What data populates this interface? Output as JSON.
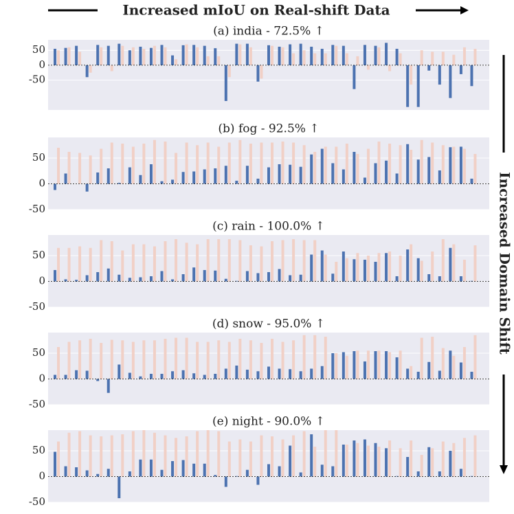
{
  "header": {
    "title": "Increased mIoU on Real-shift Data",
    "side_label": "Increased Domain Shift"
  },
  "chart_data": [
    {
      "type": "bar",
      "title": "(a) india - 72.5% ↑",
      "ylim": [
        -150,
        85
      ],
      "yticks": [
        -50,
        0,
        50
      ],
      "grid": true,
      "categories": [
        null,
        null,
        null,
        null,
        null,
        null,
        null,
        null,
        null,
        null,
        null,
        null,
        null,
        null,
        null,
        null,
        null,
        null,
        null,
        null,
        null,
        null,
        null,
        null,
        null,
        null,
        null,
        null,
        null,
        null,
        null,
        null,
        null,
        null,
        null,
        null,
        null,
        null,
        null,
        null
      ],
      "series": [
        {
          "color": "#4c72b0",
          "values": [
            55,
            58,
            65,
            -40,
            68,
            65,
            72,
            50,
            62,
            58,
            68,
            33,
            67,
            68,
            65,
            57,
            -120,
            72,
            72,
            -55,
            67,
            62,
            70,
            72,
            62,
            55,
            68,
            65,
            -80,
            68,
            65,
            75,
            55,
            -140,
            -140,
            -18,
            -65,
            -110,
            -30,
            -70
          ]
        },
        {
          "color": "#f1d0c6",
          "values": [
            50,
            60,
            45,
            -25,
            60,
            -20,
            65,
            60,
            55,
            65,
            60,
            20,
            70,
            60,
            30,
            30,
            -40,
            70,
            60,
            -45,
            65,
            60,
            40,
            50,
            40,
            40,
            65,
            40,
            30,
            -15,
            60,
            -20,
            40,
            -65,
            50,
            45,
            45,
            35,
            60,
            55
          ]
        }
      ]
    },
    {
      "type": "bar",
      "title": "(b) fog - 92.5% ↑",
      "ylim": [
        -50,
        90
      ],
      "yticks": [
        -50,
        0,
        50
      ],
      "grid": true,
      "categories": [
        null,
        null,
        null,
        null,
        null,
        null,
        null,
        null,
        null,
        null,
        null,
        null,
        null,
        null,
        null,
        null,
        null,
        null,
        null,
        null,
        null,
        null,
        null,
        null,
        null,
        null,
        null,
        null,
        null,
        null,
        null,
        null,
        null,
        null,
        null,
        null,
        null,
        null,
        null,
        null
      ],
      "series": [
        {
          "color": "#4c72b0",
          "values": [
            -12,
            20,
            0,
            -15,
            22,
            30,
            2,
            32,
            17,
            38,
            5,
            8,
            23,
            24,
            28,
            30,
            35,
            6,
            35,
            10,
            32,
            38,
            37,
            33,
            57,
            68,
            40,
            28,
            62,
            12,
            40,
            45,
            20,
            77,
            47,
            52,
            26,
            71,
            72,
            10
          ]
        },
        {
          "color": "#f1d0c6",
          "values": [
            70,
            62,
            60,
            55,
            68,
            80,
            78,
            72,
            78,
            85,
            82,
            60,
            80,
            75,
            80,
            72,
            80,
            85,
            78,
            80,
            80,
            82,
            80,
            75,
            62,
            72,
            72,
            78,
            58,
            68,
            82,
            78,
            75,
            66,
            85,
            80,
            75,
            72,
            68,
            58
          ]
        }
      ]
    },
    {
      "type": "bar",
      "title": "(c) rain - 100.0% ↑",
      "ylim": [
        -50,
        90
      ],
      "yticks": [
        -50,
        0,
        50
      ],
      "grid": true,
      "categories": [
        null,
        null,
        null,
        null,
        null,
        null,
        null,
        null,
        null,
        null,
        null,
        null,
        null,
        null,
        null,
        null,
        null,
        null,
        null,
        null,
        null,
        null,
        null,
        null,
        null,
        null,
        null,
        null,
        null,
        null,
        null,
        null,
        null,
        null,
        null,
        null,
        null,
        null,
        null,
        null
      ],
      "series": [
        {
          "color": "#4c72b0",
          "values": [
            22,
            4,
            3,
            12,
            18,
            25,
            13,
            7,
            8,
            10,
            20,
            4,
            14,
            27,
            22,
            21,
            5,
            1,
            20,
            16,
            18,
            24,
            12,
            13,
            52,
            60,
            15,
            58,
            43,
            42,
            38,
            55,
            10,
            62,
            45,
            14,
            10,
            65,
            10,
            1
          ]
        },
        {
          "color": "#f1d0c6",
          "values": [
            65,
            65,
            68,
            65,
            80,
            78,
            60,
            72,
            72,
            68,
            78,
            82,
            75,
            72,
            82,
            82,
            82,
            80,
            70,
            68,
            78,
            80,
            82,
            80,
            80,
            52,
            38,
            45,
            55,
            50,
            55,
            58,
            50,
            72,
            40,
            58,
            82,
            72,
            42,
            70
          ]
        }
      ]
    },
    {
      "type": "bar",
      "title": "(d) snow - 95.0% ↑",
      "ylim": [
        -50,
        90
      ],
      "yticks": [
        -50,
        0,
        50
      ],
      "grid": true,
      "categories": [
        null,
        null,
        null,
        null,
        null,
        null,
        null,
        null,
        null,
        null,
        null,
        null,
        null,
        null,
        null,
        null,
        null,
        null,
        null,
        null,
        null,
        null,
        null,
        null,
        null,
        null,
        null,
        null,
        null,
        null,
        null,
        null,
        null,
        null,
        null,
        null,
        null,
        null,
        null,
        null
      ],
      "series": [
        {
          "color": "#4c72b0",
          "values": [
            8,
            8,
            17,
            16,
            -4,
            -27,
            28,
            12,
            5,
            10,
            10,
            15,
            17,
            11,
            8,
            10,
            20,
            26,
            18,
            15,
            24,
            20,
            19,
            15,
            20,
            25,
            50,
            52,
            54,
            34,
            54,
            54,
            42,
            20,
            14,
            33,
            16,
            55,
            32,
            14
          ]
        },
        {
          "color": "#f1d0c6",
          "values": [
            62,
            72,
            75,
            78,
            70,
            76,
            75,
            72,
            75,
            75,
            78,
            80,
            80,
            72,
            72,
            75,
            72,
            78,
            75,
            70,
            78,
            72,
            75,
            85,
            85,
            82,
            50,
            45,
            55,
            55,
            55,
            52,
            55,
            25,
            80,
            82,
            60,
            45,
            62,
            85
          ]
        }
      ]
    },
    {
      "type": "bar",
      "title": "(e) night - 90.0% ↑",
      "ylim": [
        -50,
        90
      ],
      "yticks": [
        -50,
        0,
        50
      ],
      "grid": true,
      "categories": [
        null,
        null,
        null,
        null,
        null,
        null,
        null,
        null,
        null,
        null,
        null,
        null,
        null,
        null,
        null,
        null,
        null,
        null,
        null,
        null,
        null,
        null,
        null,
        null,
        null,
        null,
        null,
        null,
        null,
        null,
        null,
        null,
        null,
        null,
        null,
        null,
        null,
        null,
        null,
        null
      ],
      "series": [
        {
          "color": "#4c72b0",
          "values": [
            48,
            20,
            18,
            12,
            5,
            15,
            -42,
            10,
            33,
            33,
            13,
            30,
            32,
            25,
            25,
            3,
            -20,
            1,
            13,
            -16,
            24,
            20,
            60,
            8,
            82,
            23,
            20,
            62,
            70,
            72,
            65,
            55,
            1,
            38,
            10,
            57,
            10,
            50,
            15,
            1
          ]
        },
        {
          "color": "#f1d0c6",
          "values": [
            68,
            85,
            88,
            80,
            78,
            80,
            82,
            88,
            90,
            85,
            80,
            75,
            78,
            88,
            90,
            88,
            68,
            72,
            68,
            80,
            78,
            72,
            80,
            88,
            58,
            90,
            90,
            62,
            65,
            60,
            58,
            70,
            55,
            70,
            42,
            55,
            68,
            65,
            75,
            80
          ]
        }
      ]
    }
  ]
}
